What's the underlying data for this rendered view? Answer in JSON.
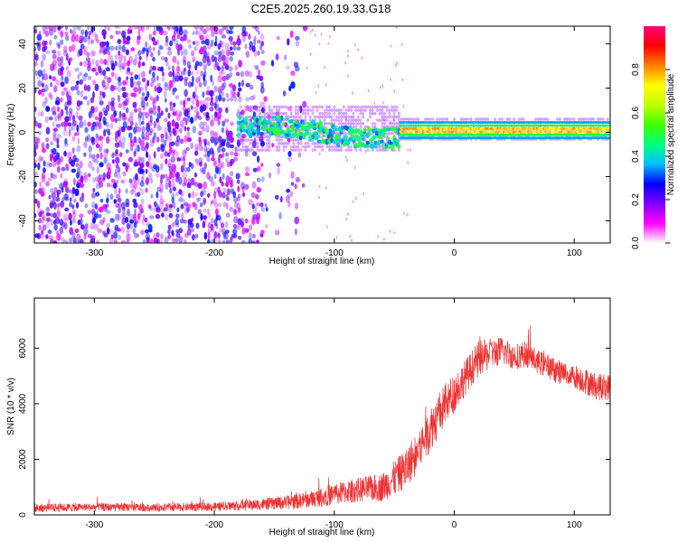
{
  "figure_title": "C2E5.2025.260.19.33.G18",
  "chart_data": [
    {
      "type": "heatmap",
      "name": "spectrogram",
      "xlabel": "Height of straight line (km)",
      "ylabel": "Frequency (Hz)",
      "xlim": [
        -350,
        130
      ],
      "ylim": [
        -50,
        48
      ],
      "xticks": [
        -300,
        -200,
        -100,
        0,
        100
      ],
      "yticks": [
        -40,
        -20,
        0,
        20,
        40
      ],
      "xtick_labels": [
        "-300",
        "-200",
        "-100",
        "0",
        "100"
      ],
      "ytick_labels": [
        "-40",
        "-20",
        "0",
        "20",
        "40"
      ],
      "description_regions": [
        {
          "x_range": [
            -350,
            -180
          ],
          "freq_range": [
            -50,
            48
          ],
          "amplitude": [
            0.05,
            0.3
          ],
          "pattern": "broadband noise"
        },
        {
          "x_range": [
            -180,
            -45
          ],
          "freq_range": [
            -8,
            10
          ],
          "amplitude": [
            0.3,
            0.55
          ],
          "pattern": "scattered signal band"
        },
        {
          "x_range": [
            -45,
            130
          ],
          "freq_range": [
            -3,
            5
          ],
          "amplitude": [
            0.5,
            0.95
          ],
          "pattern": "narrow carrier line near 1 Hz"
        }
      ],
      "colorbar": {
        "label": "Normalized spectral amplitude",
        "range": [
          0,
          1
        ],
        "ticks": [
          0.0,
          0.2,
          0.4,
          0.6,
          0.8
        ],
        "tick_labels": [
          "0.0",
          "0.2",
          "0.4",
          "0.6",
          "0.8"
        ],
        "colors": [
          "#ffffff",
          "#ff00ff",
          "#8000ff",
          "#0000ff",
          "#00c0ff",
          "#00ff80",
          "#40ff00",
          "#c0ff00",
          "#ffff00",
          "#ff8000",
          "#ff0000",
          "#ff0080"
        ]
      }
    },
    {
      "type": "line",
      "name": "snr",
      "xlabel": "Height of straight line (km)",
      "ylabel": "SNR (10 * v/v)",
      "xlim": [
        -350,
        130
      ],
      "ylim": [
        0,
        7800
      ],
      "xticks": [
        -300,
        -200,
        -100,
        0,
        100
      ],
      "yticks": [
        0,
        2000,
        4000,
        6000
      ],
      "xtick_labels": [
        "-300",
        "-200",
        "-100",
        "0",
        "100"
      ],
      "ytick_labels": [
        "0",
        "2000",
        "4000",
        "6000"
      ],
      "color": "#ee3333",
      "x": [
        -350,
        -300,
        -250,
        -200,
        -180,
        -160,
        -140,
        -120,
        -100,
        -80,
        -60,
        -50,
        -40,
        -30,
        -20,
        -10,
        0,
        10,
        20,
        30,
        40,
        50,
        60,
        70,
        80,
        90,
        100,
        110,
        120,
        130
      ],
      "y": [
        250,
        280,
        260,
        300,
        330,
        380,
        450,
        550,
        750,
        900,
        1000,
        1300,
        1700,
        2300,
        3100,
        3800,
        4400,
        5000,
        5600,
        5800,
        5900,
        5700,
        5800,
        5500,
        5300,
        5100,
        5000,
        4800,
        4600,
        4600
      ],
      "noise_amplitude": [
        200,
        180,
        180,
        200,
        220,
        260,
        320,
        380,
        500,
        550,
        650,
        800,
        900,
        1000,
        1000,
        1000,
        900,
        800,
        800,
        700,
        650,
        600,
        600,
        550,
        550,
        550,
        550,
        600,
        600,
        600
      ]
    }
  ]
}
